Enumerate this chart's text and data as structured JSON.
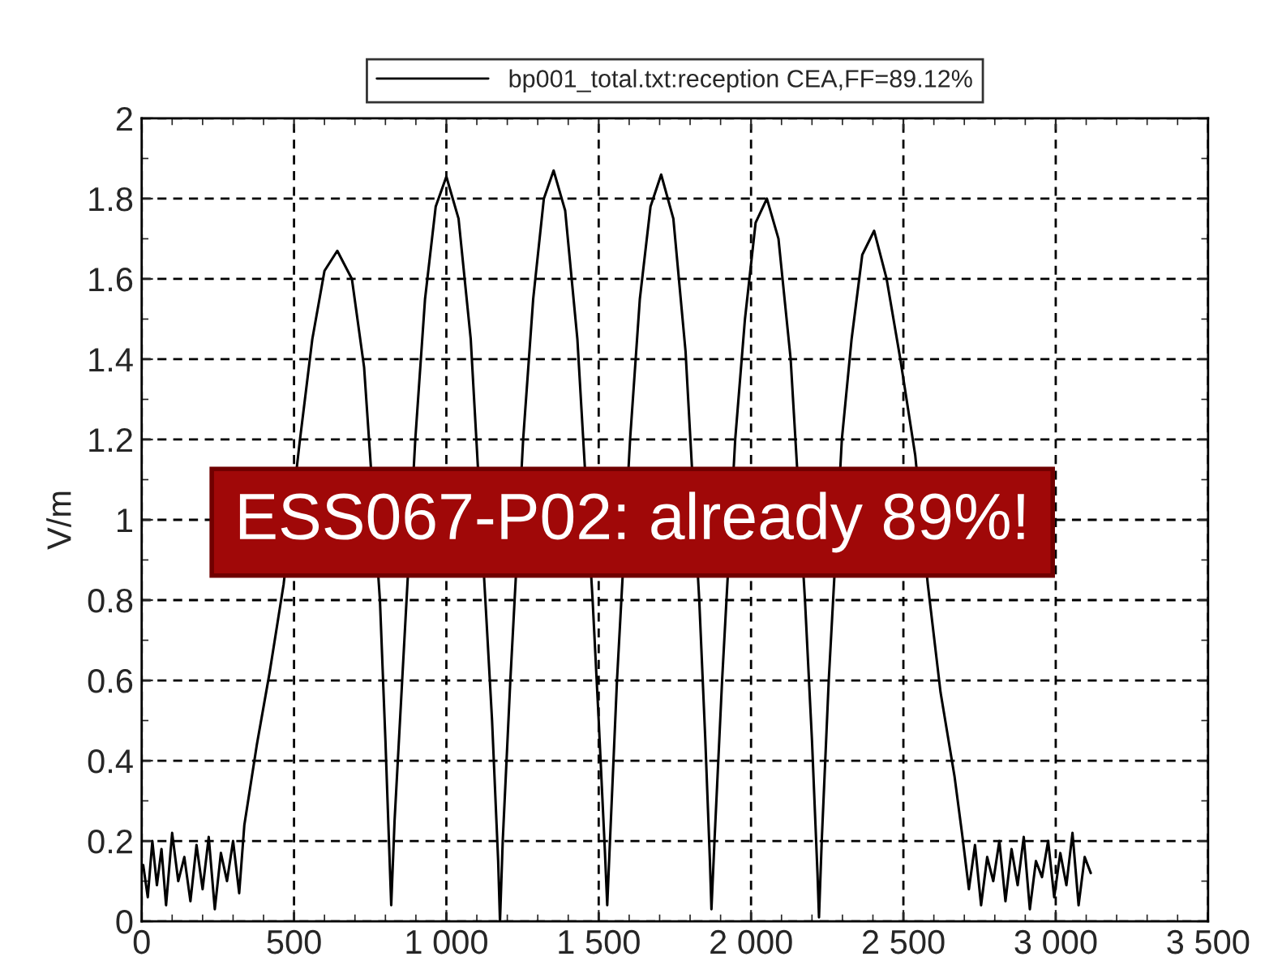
{
  "chart_data": {
    "type": "line",
    "ylabel": "V/m",
    "x": [
      5,
      20,
      35,
      50,
      65,
      80,
      100,
      120,
      140,
      160,
      180,
      200,
      220,
      240,
      260,
      280,
      300,
      320,
      337,
      378,
      420,
      466,
      518,
      560,
      600,
      642,
      690,
      730,
      782,
      800,
      819,
      830,
      855,
      898,
      930,
      965,
      1000,
      1040,
      1080,
      1128,
      1150,
      1170,
      1176,
      1185,
      1210,
      1252,
      1285,
      1320,
      1352,
      1390,
      1430,
      1480,
      1500,
      1520,
      1528,
      1537,
      1560,
      1603,
      1635,
      1670,
      1705,
      1745,
      1785,
      1830,
      1850,
      1865,
      1870,
      1880,
      1905,
      1948,
      1980,
      2015,
      2052,
      2090,
      2130,
      2177,
      2200,
      2218,
      2223,
      2232,
      2255,
      2298,
      2330,
      2365,
      2404,
      2445,
      2490,
      2539,
      2580,
      2622,
      2668,
      2694,
      2715,
      2735,
      2755,
      2775,
      2795,
      2815,
      2835,
      2855,
      2875,
      2895,
      2915,
      2935,
      2955,
      2975,
      2995,
      3015,
      3035,
      3055,
      3075,
      3095,
      3115
    ],
    "series": [
      {
        "name": "bp001_total.txt:reception CEA,FF=89.12%",
        "color": "#000000",
        "values": [
          0.14,
          0.06,
          0.2,
          0.09,
          0.18,
          0.04,
          0.22,
          0.1,
          0.16,
          0.05,
          0.19,
          0.08,
          0.21,
          0.03,
          0.17,
          0.1,
          0.2,
          0.07,
          0.24,
          0.44,
          0.62,
          0.84,
          1.19,
          1.45,
          1.62,
          1.67,
          1.6,
          1.38,
          0.8,
          0.45,
          0.04,
          0.25,
          0.6,
          1.2,
          1.55,
          1.78,
          1.855,
          1.75,
          1.45,
          0.8,
          0.5,
          0.15,
          0.0,
          0.2,
          0.6,
          1.2,
          1.55,
          1.8,
          1.87,
          1.77,
          1.45,
          0.8,
          0.5,
          0.18,
          0.04,
          0.2,
          0.6,
          1.2,
          1.55,
          1.78,
          1.86,
          1.75,
          1.42,
          0.8,
          0.45,
          0.15,
          0.03,
          0.2,
          0.6,
          1.2,
          1.5,
          1.74,
          1.8,
          1.7,
          1.4,
          0.8,
          0.45,
          0.12,
          0.01,
          0.2,
          0.6,
          1.2,
          1.45,
          1.66,
          1.72,
          1.6,
          1.4,
          1.16,
          0.84,
          0.57,
          0.36,
          0.21,
          0.08,
          0.19,
          0.04,
          0.16,
          0.1,
          0.2,
          0.05,
          0.18,
          0.09,
          0.21,
          0.03,
          0.15,
          0.11,
          0.2,
          0.06,
          0.17,
          0.09,
          0.22,
          0.04,
          0.16,
          0.12
        ]
      }
    ],
    "xlim": [
      0,
      3500
    ],
    "xticks": [
      0,
      500,
      {
        "value": 1000,
        "label": "1 000"
      },
      {
        "value": 1500,
        "label": "1 500"
      },
      {
        "value": 2000,
        "label": "2 000"
      },
      {
        "value": 2500,
        "label": "2 500"
      },
      {
        "value": 3000,
        "label": "3 000"
      },
      {
        "value": 3500,
        "label": "3 500"
      }
    ],
    "ylim": [
      0,
      2
    ],
    "yticks": [
      0,
      0.2,
      0.4,
      0.6,
      0.8,
      1,
      1.2,
      1.4,
      1.6,
      1.8,
      2
    ],
    "grid": true,
    "legend": "top",
    "line_style": "solid",
    "marker": "none",
    "annotations": [
      "ESS067-P02: already 89%!"
    ]
  }
}
